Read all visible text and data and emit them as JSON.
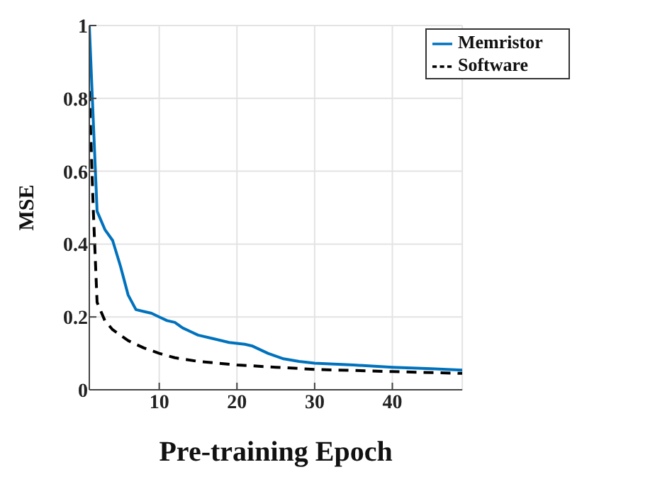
{
  "chart_data": {
    "type": "line",
    "xlabel": "Pre-training Epoch",
    "ylabel": "MSE",
    "xlim": [
      1,
      49
    ],
    "xticks": [
      10,
      20,
      30,
      40
    ],
    "ylim": [
      0,
      1
    ],
    "yticks": [
      0,
      0.2,
      0.4,
      0.6,
      0.8,
      1
    ],
    "grid": true,
    "legend": "top right",
    "marker": "none",
    "series": [
      {
        "name": "Memristor",
        "color": "#0072bd",
        "line_style": "solid",
        "x": [
          1,
          2,
          3,
          4,
          5,
          6,
          7,
          8,
          9,
          10,
          11,
          12,
          13,
          14,
          15,
          17,
          19,
          21,
          22,
          24,
          26,
          28,
          30,
          35,
          40,
          45,
          49
        ],
        "values": [
          1,
          0.49,
          0.44,
          0.41,
          0.34,
          0.26,
          0.22,
          0.215,
          0.21,
          0.2,
          0.19,
          0.185,
          0.17,
          0.16,
          0.15,
          0.14,
          0.13,
          0.125,
          0.12,
          0.1,
          0.085,
          0.078,
          0.073,
          0.068,
          0.062,
          0.058,
          0.054
        ]
      },
      {
        "name": "Software",
        "color": "#000000",
        "line_style": "dashed",
        "x": [
          1,
          1.5,
          2,
          3,
          4,
          5,
          6,
          8,
          10,
          12,
          15,
          20,
          25,
          30,
          40,
          49
        ],
        "values": [
          0.82,
          0.5,
          0.24,
          0.19,
          0.165,
          0.15,
          0.135,
          0.115,
          0.1,
          0.088,
          0.078,
          0.068,
          0.062,
          0.056,
          0.05,
          0.045
        ]
      }
    ]
  }
}
